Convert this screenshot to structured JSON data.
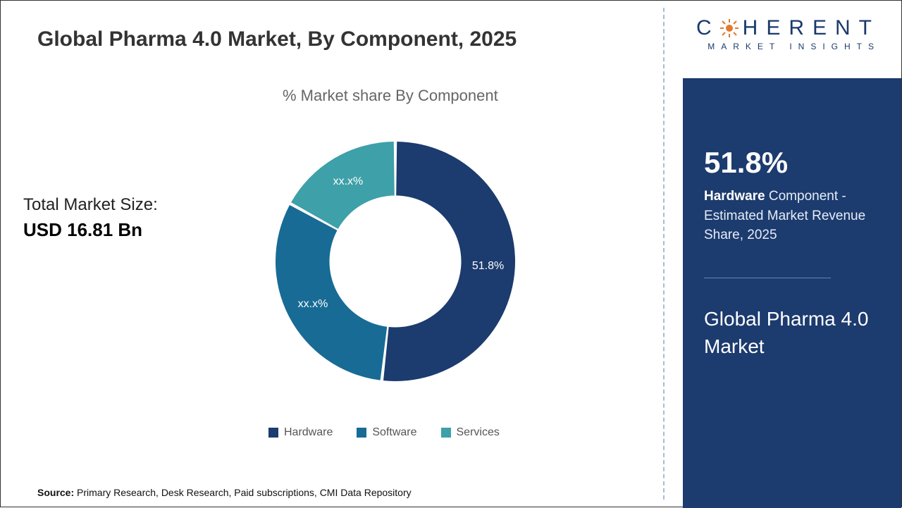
{
  "title": "Global Pharma 4.0 Market, By Component, 2025",
  "chart_subtitle": "% Market share By Component",
  "total_size": {
    "label": "Total Market Size:",
    "value": "USD 16.81 Bn"
  },
  "donut": {
    "type": "pie",
    "inner_radius_ratio": 0.55,
    "background_color": "#ffffff",
    "slice_gap_deg": 1.5,
    "start_angle_deg": -90,
    "label_fontsize": 16,
    "label_color": "#ffffff",
    "slices": [
      {
        "name": "Hardware",
        "value": 51.8,
        "label": "51.8%",
        "color": "#1c3b6e"
      },
      {
        "name": "Software",
        "value": 31.2,
        "label": "xx.x%",
        "color": "#186b95"
      },
      {
        "name": "Services",
        "value": 17.0,
        "label": "xx.x%",
        "color": "#3ea0a8"
      }
    ]
  },
  "legend": [
    {
      "label": "Hardware",
      "color": "#1c3b6e"
    },
    {
      "label": "Software",
      "color": "#186b95"
    },
    {
      "label": "Services",
      "color": "#3ea0a8"
    }
  ],
  "source": {
    "prefix": "Source:",
    "text": " Primary Research, Desk Research, Paid subscriptions, CMI Data Repository"
  },
  "logo": {
    "brand_main": "C HERENT",
    "brand_sub": "MARKET INSIGHTS"
  },
  "right_panel": {
    "big": "51.8%",
    "desc_bold": "Hardware",
    "desc_rest": " Component - Estimated Market Revenue Share, 2025",
    "subtitle": "Global Pharma 4.0 Market",
    "bg_color": "#1c3b6e"
  }
}
